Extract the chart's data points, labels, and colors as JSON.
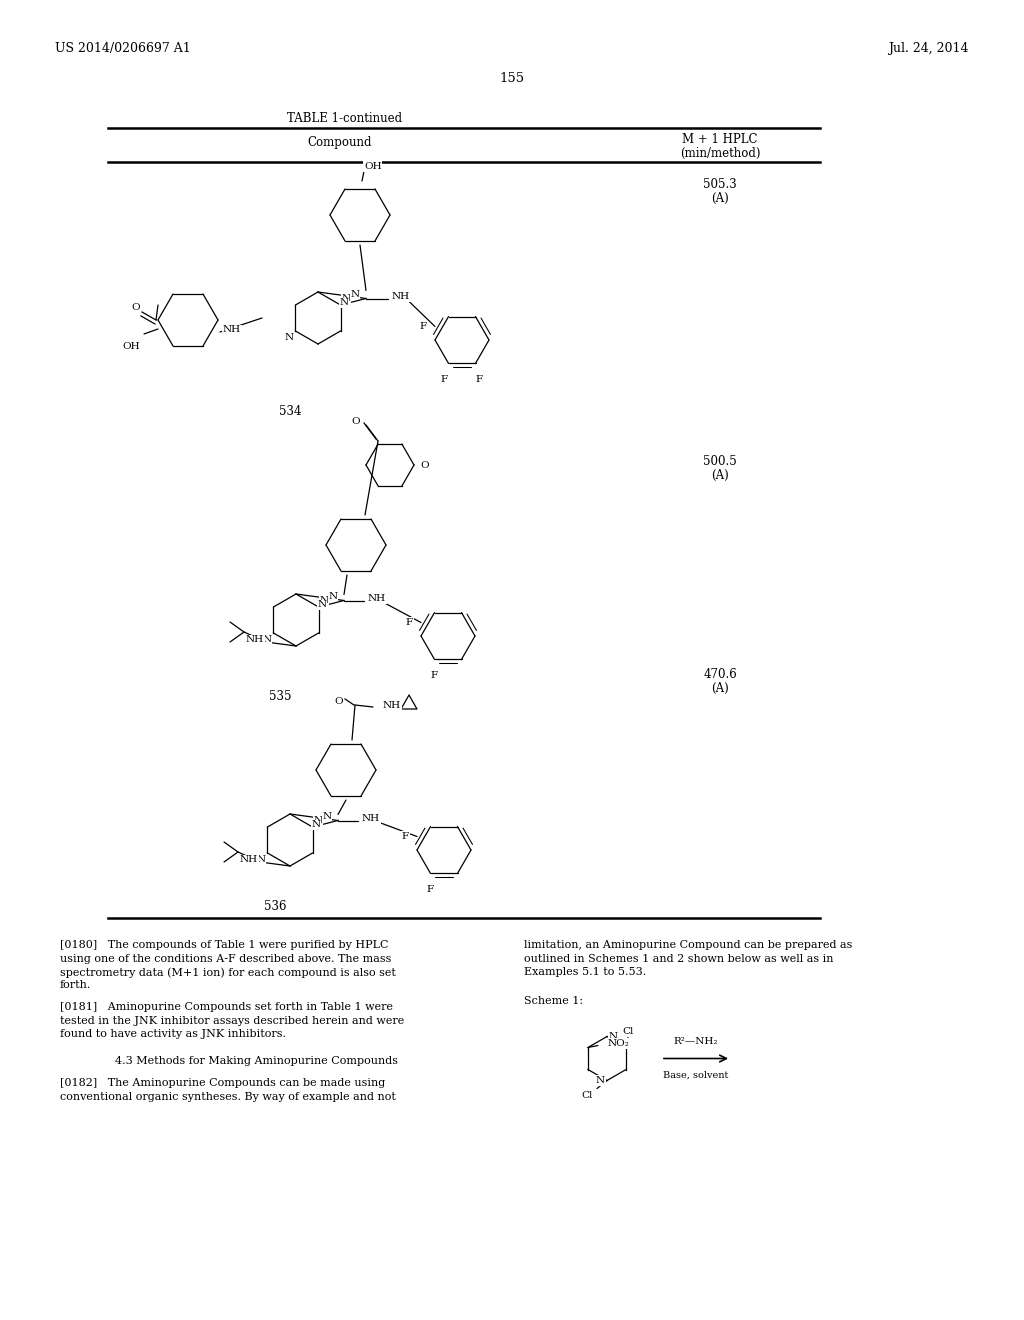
{
  "bg_color": "#ffffff",
  "page_header_left": "US 2014/0206697 A1",
  "page_header_right": "Jul. 24, 2014",
  "page_number": "155",
  "table_title": "TABLE 1-continued",
  "col1_header": "Compound",
  "col2_header_line1": "M + 1 HPLC",
  "col2_header_line2": "(min/method)",
  "hplc_534_line1": "505.3",
  "hplc_534_line2": "(A)",
  "hplc_535_line1": "500.5",
  "hplc_535_line2": "(A)",
  "hplc_536_line1": "470.6",
  "hplc_536_line2": "(A)",
  "num_534": "534",
  "num_535": "535",
  "num_536": "536",
  "p180_lines": [
    "[0180]   The compounds of Table 1 were purified by HPLC",
    "using one of the conditions A-F described above. The mass",
    "spectrometry data (M+1 ion) for each compound is also set",
    "forth."
  ],
  "p181_lines": [
    "[0181]   Aminopurine Compounds set forth in Table 1 were",
    "tested in the JNK inhibitor assays described herein and were",
    "found to have activity as JNK inhibitors."
  ],
  "section_43": "4.3 Methods for Making Aminopurine Compounds",
  "p182_lines": [
    "[0182]   The Aminopurine Compounds can be made using",
    "conventional organic syntheses. By way of example and not"
  ],
  "right_col_lines": [
    "limitation, an Aminopurine Compound can be prepared as",
    "outlined in Schemes 1 and 2 shown below as well as in",
    "Examples 5.1 to 5.53."
  ],
  "scheme_label": "Scheme 1:"
}
